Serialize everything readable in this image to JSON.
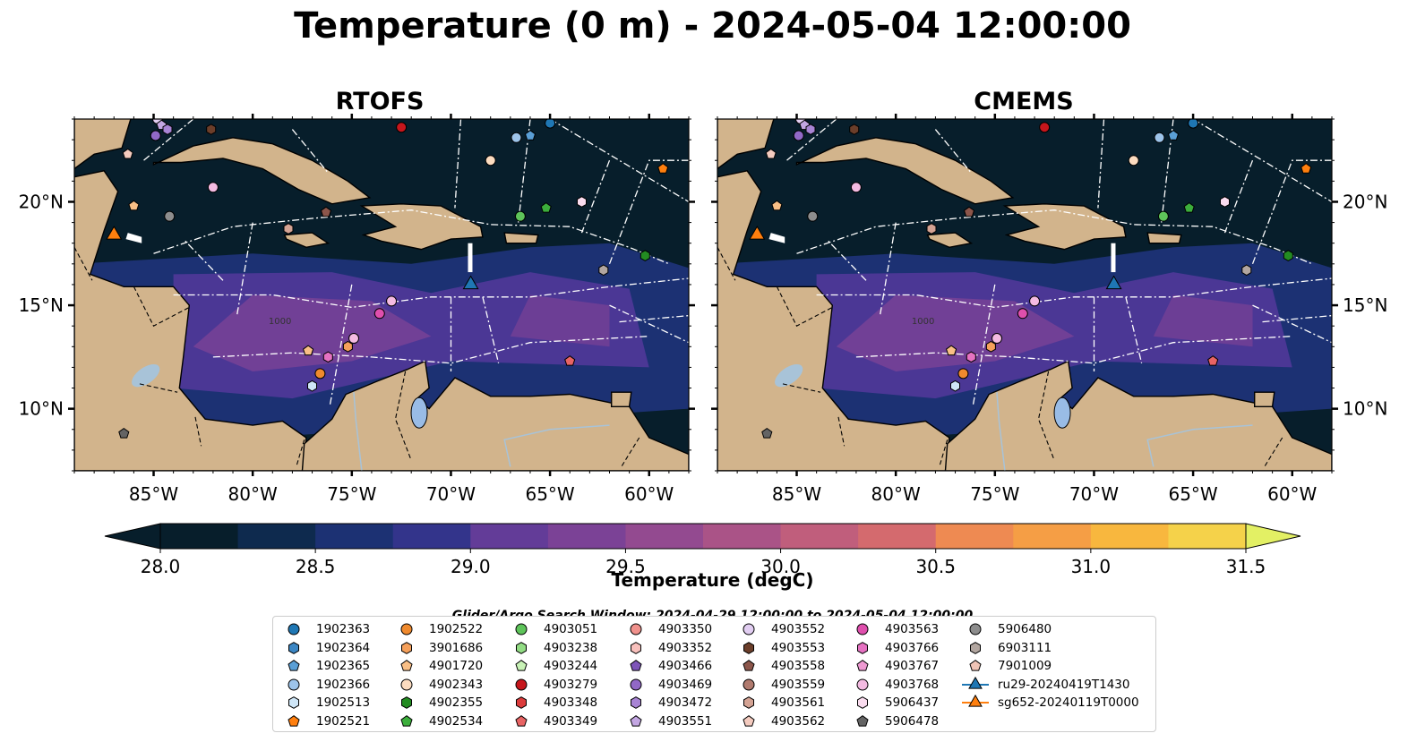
{
  "title": "Temperature (0 m) - 2024-05-04 12:00:00",
  "chart_data": {
    "type": "heatmap",
    "panels": [
      {
        "title": "RTOFS"
      },
      {
        "title": "CMEMS"
      }
    ],
    "xlim": [
      -89.0,
      -58.0
    ],
    "ylim": [
      7.0,
      24.0
    ],
    "x_ticks": [
      {
        "value": -85,
        "label": "85°W"
      },
      {
        "value": -80,
        "label": "80°W"
      },
      {
        "value": -75,
        "label": "75°W"
      },
      {
        "value": -70,
        "label": "70°W"
      },
      {
        "value": -65,
        "label": "65°W"
      },
      {
        "value": -60,
        "label": "60°W"
      }
    ],
    "y_ticks": [
      {
        "value": 10,
        "label": "10°N"
      },
      {
        "value": 15,
        "label": "15°N"
      },
      {
        "value": 20,
        "label": "20°N"
      }
    ],
    "colorbar": {
      "label": "Temperature (degC)",
      "min": 28.0,
      "max": 31.5,
      "step": 0.25,
      "extend": "both",
      "ticks": [
        {
          "value": 28.0,
          "label": "28.0"
        },
        {
          "value": 28.5,
          "label": "28.5"
        },
        {
          "value": 29.0,
          "label": "29.0"
        },
        {
          "value": 29.5,
          "label": "29.5"
        },
        {
          "value": 30.0,
          "label": "30.0"
        },
        {
          "value": 30.5,
          "label": "30.5"
        },
        {
          "value": 31.0,
          "label": "31.0"
        },
        {
          "value": 31.5,
          "label": "31.5"
        }
      ],
      "colors": [
        "#071e2b",
        "#0e2a4e",
        "#1c3173",
        "#33348b",
        "#4b3795",
        "#633c98",
        "#7b4296",
        "#934a90",
        "#aa5387",
        "#c05e7c",
        "#d46a6e",
        "#e27862",
        "#ee8a52",
        "#f59e45",
        "#f8b73e",
        "#f5d24a",
        "#e3f064"
      ]
    },
    "contour_label": "1000",
    "search_window": "Glider/Argo Search Window: 2024-04-29 12:00:00 to 2024-05-04 12:00:00",
    "legend": [
      {
        "id": "1902363",
        "marker": "circle",
        "color": "#1f77b4"
      },
      {
        "id": "1902364",
        "marker": "hexagon",
        "color": "#3b86c4"
      },
      {
        "id": "1902365",
        "marker": "pentagon",
        "color": "#5a9fd6"
      },
      {
        "id": "1902366",
        "marker": "circle",
        "color": "#9dc4ea"
      },
      {
        "id": "1902513",
        "marker": "hexagon",
        "color": "#cfe6f7"
      },
      {
        "id": "1902521",
        "marker": "pentagon",
        "color": "#ff7f0e"
      },
      {
        "id": "1902522",
        "marker": "circle",
        "color": "#f08a2e"
      },
      {
        "id": "3901686",
        "marker": "hexagon",
        "color": "#f5a05b"
      },
      {
        "id": "4901720",
        "marker": "pentagon",
        "color": "#f9bf86"
      },
      {
        "id": "4902343",
        "marker": "circle",
        "color": "#fcdcc0"
      },
      {
        "id": "4902355",
        "marker": "hexagon",
        "color": "#238b22"
      },
      {
        "id": "4902534",
        "marker": "pentagon",
        "color": "#3cae3c"
      },
      {
        "id": "4903051",
        "marker": "circle",
        "color": "#5ec45a"
      },
      {
        "id": "4903238",
        "marker": "hexagon",
        "color": "#92dc84"
      },
      {
        "id": "4903244",
        "marker": "pentagon",
        "color": "#c8f2b6"
      },
      {
        "id": "4903279",
        "marker": "circle",
        "color": "#c6161c"
      },
      {
        "id": "4903348",
        "marker": "hexagon",
        "color": "#dc3c3c"
      },
      {
        "id": "4903349",
        "marker": "pentagon",
        "color": "#e86464"
      },
      {
        "id": "4903350",
        "marker": "circle",
        "color": "#f0918c"
      },
      {
        "id": "4903352",
        "marker": "hexagon",
        "color": "#f8c0bc"
      },
      {
        "id": "4903466",
        "marker": "pentagon",
        "color": "#7e55b8"
      },
      {
        "id": "4903469",
        "marker": "circle",
        "color": "#9168c6"
      },
      {
        "id": "4903472",
        "marker": "hexagon",
        "color": "#a884d4"
      },
      {
        "id": "4903551",
        "marker": "pentagon",
        "color": "#c3a6e2"
      },
      {
        "id": "4903552",
        "marker": "circle",
        "color": "#e2cef2"
      },
      {
        "id": "4903553",
        "marker": "hexagon",
        "color": "#6b3e2a"
      },
      {
        "id": "4903558",
        "marker": "pentagon",
        "color": "#8c564b"
      },
      {
        "id": "4903559",
        "marker": "circle",
        "color": "#b07a6e"
      },
      {
        "id": "4903561",
        "marker": "hexagon",
        "color": "#d4a394"
      },
      {
        "id": "4903562",
        "marker": "pentagon",
        "color": "#f4cbbf"
      },
      {
        "id": "4903563",
        "marker": "circle",
        "color": "#df4fad"
      },
      {
        "id": "4903766",
        "marker": "hexagon",
        "color": "#e672c2"
      },
      {
        "id": "4903767",
        "marker": "pentagon",
        "color": "#ee9ad2"
      },
      {
        "id": "4903768",
        "marker": "circle",
        "color": "#f4bbe2"
      },
      {
        "id": "5906437",
        "marker": "hexagon",
        "color": "#fadcef"
      },
      {
        "id": "5906478",
        "marker": "pentagon",
        "color": "#646464"
      },
      {
        "id": "5906480",
        "marker": "circle",
        "color": "#8d8d8d"
      },
      {
        "id": "6903111",
        "marker": "hexagon",
        "color": "#b2a6a0"
      },
      {
        "id": "7901009",
        "marker": "pentagon",
        "color": "#f0c4b6"
      },
      {
        "id": "ru29-20240419T1430",
        "marker": "triangle",
        "color": "#1f77b4",
        "line": true
      },
      {
        "id": "sg652-20240119T0000",
        "marker": "triangle",
        "color": "#ff7f0e",
        "line": true
      }
    ],
    "floats": [
      {
        "id": "1902363",
        "lon": -65.0,
        "lat": 23.8
      },
      {
        "id": "1902365",
        "lon": -66.0,
        "lat": 23.2
      },
      {
        "id": "1902366",
        "lon": -66.7,
        "lat": 23.1
      },
      {
        "id": "4902343",
        "lon": -68.0,
        "lat": 22.0
      },
      {
        "id": "4903279",
        "lon": -72.5,
        "lat": 23.6
      },
      {
        "id": "4903552",
        "lon": -84.8,
        "lat": 24.0
      },
      {
        "id": "4903551",
        "lon": -84.6,
        "lat": 23.7
      },
      {
        "id": "4903472",
        "lon": -84.3,
        "lat": 23.5
      },
      {
        "id": "4903469",
        "lon": -84.9,
        "lat": 23.2
      },
      {
        "id": "4903553",
        "lon": -82.1,
        "lat": 23.5
      },
      {
        "id": "4903562",
        "lon": -86.3,
        "lat": 22.3
      },
      {
        "id": "4903768",
        "lon": -82.0,
        "lat": 20.7
      },
      {
        "id": "4901720",
        "lon": -86.0,
        "lat": 19.8
      },
      {
        "id": "5906480",
        "lon": -84.2,
        "lat": 19.3
      },
      {
        "id": "4903558",
        "lon": -76.3,
        "lat": 19.5
      },
      {
        "id": "4903561",
        "lon": -78.2,
        "lat": 18.7
      },
      {
        "id": "4903051",
        "lon": -66.5,
        "lat": 19.3
      },
      {
        "id": "4902534",
        "lon": -65.2,
        "lat": 19.7
      },
      {
        "id": "5906437",
        "lon": -63.4,
        "lat": 20.0
      },
      {
        "id": "1902521",
        "lon": -59.3,
        "lat": 21.6
      },
      {
        "id": "4902355",
        "lon": -60.2,
        "lat": 17.4
      },
      {
        "id": "6903111",
        "lon": -62.3,
        "lat": 16.7
      },
      {
        "id": "4903563",
        "lon": -73.6,
        "lat": 14.6
      },
      {
        "id": "4903768",
        "lon": -73.0,
        "lat": 15.2
      },
      {
        "id": "4903768",
        "lon": -74.9,
        "lat": 13.4
      },
      {
        "id": "3901686",
        "lon": -75.2,
        "lat": 13.0
      },
      {
        "id": "4903766",
        "lon": -76.2,
        "lat": 12.5
      },
      {
        "id": "4901720",
        "lon": -77.2,
        "lat": 12.8
      },
      {
        "id": "1902522",
        "lon": -76.6,
        "lat": 11.7
      },
      {
        "id": "1902513",
        "lon": -77.0,
        "lat": 11.1
      },
      {
        "id": "4903349",
        "lon": -64.0,
        "lat": 12.3
      },
      {
        "id": "5906478",
        "lon": -86.5,
        "lat": 8.8
      }
    ],
    "gliders": [
      {
        "id": "ru29-20240419T1430",
        "lon": -69.0,
        "lat": 16.0,
        "color": "#1f77b4"
      },
      {
        "id": "sg652-20240119T0000",
        "lon": -87.0,
        "lat": 18.4,
        "color": "#ff7f0e"
      }
    ]
  }
}
